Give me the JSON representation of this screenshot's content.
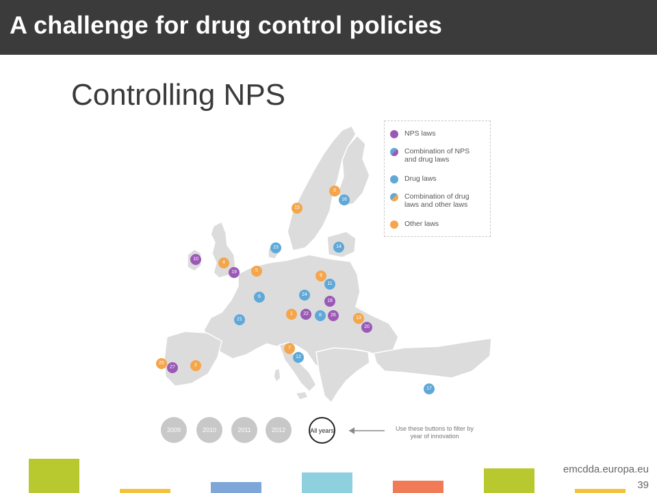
{
  "header": {
    "title": "A challenge for drug control policies"
  },
  "slide": {
    "subtitle": "Controlling NPS"
  },
  "legend": {
    "items": [
      {
        "label": "NPS laws",
        "color": "#9b59b6"
      },
      {
        "label": "Combination of NPS and drug laws",
        "color": "#7f6fc0"
      },
      {
        "label": "Drug laws",
        "color": "#5fa8d8"
      },
      {
        "label": "Combination of drug laws and other laws",
        "color": "#d9a46d"
      },
      {
        "label": "Other laws",
        "color": "#f5a54a"
      }
    ]
  },
  "markers": [
    {
      "n": "3",
      "type": "other"
    },
    {
      "n": "16",
      "type": "drug"
    },
    {
      "n": "15",
      "type": "other"
    },
    {
      "n": "14",
      "type": "drug"
    },
    {
      "n": "23",
      "type": "drug"
    },
    {
      "n": "10",
      "type": "nps"
    },
    {
      "n": "4",
      "type": "other"
    },
    {
      "n": "19",
      "type": "nps"
    },
    {
      "n": "5",
      "type": "other"
    },
    {
      "n": "9",
      "type": "other"
    },
    {
      "n": "11",
      "type": "drug"
    },
    {
      "n": "6",
      "type": "drug"
    },
    {
      "n": "24",
      "type": "drug"
    },
    {
      "n": "18",
      "type": "nps"
    },
    {
      "n": "1",
      "type": "other"
    },
    {
      "n": "22",
      "type": "nps"
    },
    {
      "n": "8",
      "type": "drug"
    },
    {
      "n": "26",
      "type": "nps"
    },
    {
      "n": "13",
      "type": "other"
    },
    {
      "n": "21",
      "type": "drug"
    },
    {
      "n": "20",
      "type": "nps"
    },
    {
      "n": "7",
      "type": "other"
    },
    {
      "n": "12",
      "type": "drug"
    },
    {
      "n": "25",
      "type": "other"
    },
    {
      "n": "27",
      "type": "nps"
    },
    {
      "n": "2",
      "type": "other"
    },
    {
      "n": "17",
      "type": "drug"
    }
  ],
  "colors": {
    "nps": "#9b59b6",
    "drug": "#5fa8d8",
    "other": "#f5a54a"
  },
  "year_buttons": [
    "2009",
    "2010",
    "2011",
    "2012"
  ],
  "all_years": "All years",
  "hint": "Use these buttons to filter by year of innovation",
  "footer": {
    "url": "emcdda.europa.eu",
    "page": "39"
  }
}
